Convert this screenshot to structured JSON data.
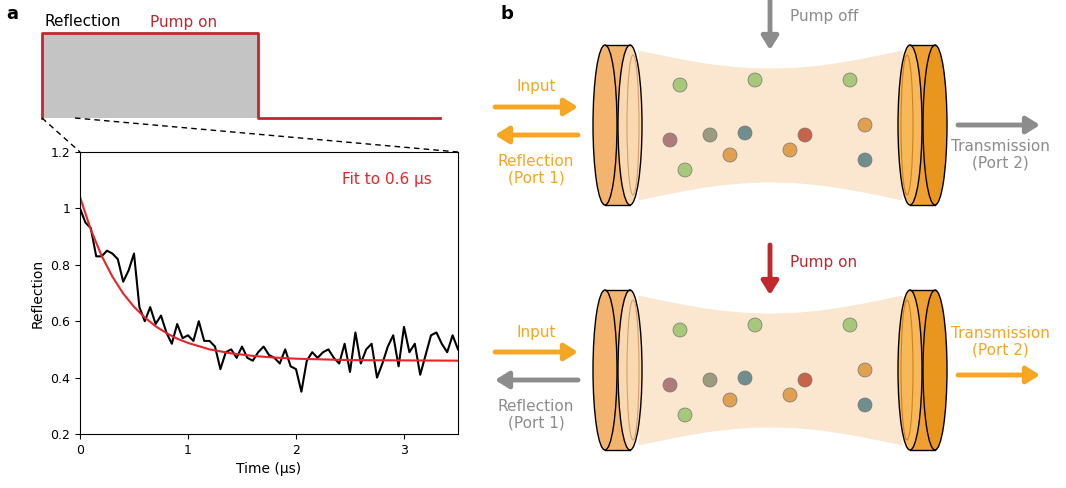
{
  "panel_labels": [
    "a",
    "b"
  ],
  "pulse_schematic": {
    "reflection_label": "Reflection",
    "pump_label": "Pump on"
  },
  "chart_data": {
    "type": "line",
    "xlabel": "Time (μs)",
    "ylabel": "Reflection",
    "xlim": [
      0,
      3.5
    ],
    "xticks": [
      0,
      1,
      2,
      3
    ],
    "ylim": [
      0.2,
      1.2
    ],
    "yticks": [
      0.2,
      0.4,
      0.6,
      0.8,
      1,
      1.2
    ],
    "annotations": [
      {
        "text": "Fit to 0.6 μs",
        "color": "#e8232a"
      }
    ],
    "series": [
      {
        "color": "#000000",
        "x": [
          0,
          0.05,
          0.1,
          0.15,
          0.2,
          0.25,
          0.3,
          0.35,
          0.4,
          0.45,
          0.5,
          0.55,
          0.6,
          0.65,
          0.7,
          0.75,
          0.8,
          0.85,
          0.9,
          0.95,
          1.0,
          1.05,
          1.1,
          1.15,
          1.2,
          1.25,
          1.3,
          1.35,
          1.4,
          1.45,
          1.5,
          1.55,
          1.6,
          1.65,
          1.7,
          1.75,
          1.8,
          1.85,
          1.9,
          1.95,
          2.0,
          2.05,
          2.1,
          2.15,
          2.2,
          2.25,
          2.3,
          2.35,
          2.4,
          2.45,
          2.5,
          2.55,
          2.6,
          2.65,
          2.7,
          2.75,
          2.8,
          2.85,
          2.9,
          2.95,
          3.0,
          3.05,
          3.1,
          3.15,
          3.2,
          3.25,
          3.3,
          3.35,
          3.4,
          3.45,
          3.5
        ],
        "values": [
          1.0,
          0.95,
          0.93,
          0.83,
          0.83,
          0.85,
          0.84,
          0.82,
          0.74,
          0.78,
          0.84,
          0.65,
          0.6,
          0.65,
          0.59,
          0.62,
          0.56,
          0.52,
          0.59,
          0.54,
          0.55,
          0.53,
          0.6,
          0.53,
          0.53,
          0.51,
          0.43,
          0.49,
          0.5,
          0.47,
          0.51,
          0.47,
          0.46,
          0.49,
          0.51,
          0.48,
          0.47,
          0.45,
          0.5,
          0.44,
          0.43,
          0.35,
          0.46,
          0.49,
          0.47,
          0.49,
          0.5,
          0.47,
          0.45,
          0.52,
          0.42,
          0.56,
          0.45,
          0.5,
          0.52,
          0.4,
          0.45,
          0.51,
          0.55,
          0.44,
          0.58,
          0.49,
          0.52,
          0.41,
          0.48,
          0.55,
          0.56,
          0.52,
          0.49,
          0.55,
          0.5
        ]
      },
      {
        "color": "#e8232a",
        "x": [
          0,
          0.1,
          0.2,
          0.3,
          0.4,
          0.5,
          0.6,
          0.7,
          0.8,
          0.9,
          1.0,
          1.2,
          1.4,
          1.6,
          1.8,
          2.0,
          2.5,
          3.0,
          3.5
        ],
        "values": [
          1.04,
          0.925,
          0.832,
          0.758,
          0.698,
          0.651,
          0.613,
          0.582,
          0.558,
          0.538,
          0.523,
          0.5,
          0.486,
          0.477,
          0.471,
          0.467,
          0.462,
          0.461,
          0.46
        ]
      }
    ]
  },
  "diagram": {
    "states": [
      {
        "pump": "Pump off",
        "input": "Input",
        "reflection": "Reflection\n(Port 1)",
        "transmission": "Transmission\n(Port 2)",
        "output": "reflection"
      },
      {
        "pump": "Pump on",
        "input": "Input",
        "reflection": "Reflection\n(Port 1)",
        "transmission": "Transmission\n(Port 2)",
        "output": "transmission"
      }
    ]
  }
}
